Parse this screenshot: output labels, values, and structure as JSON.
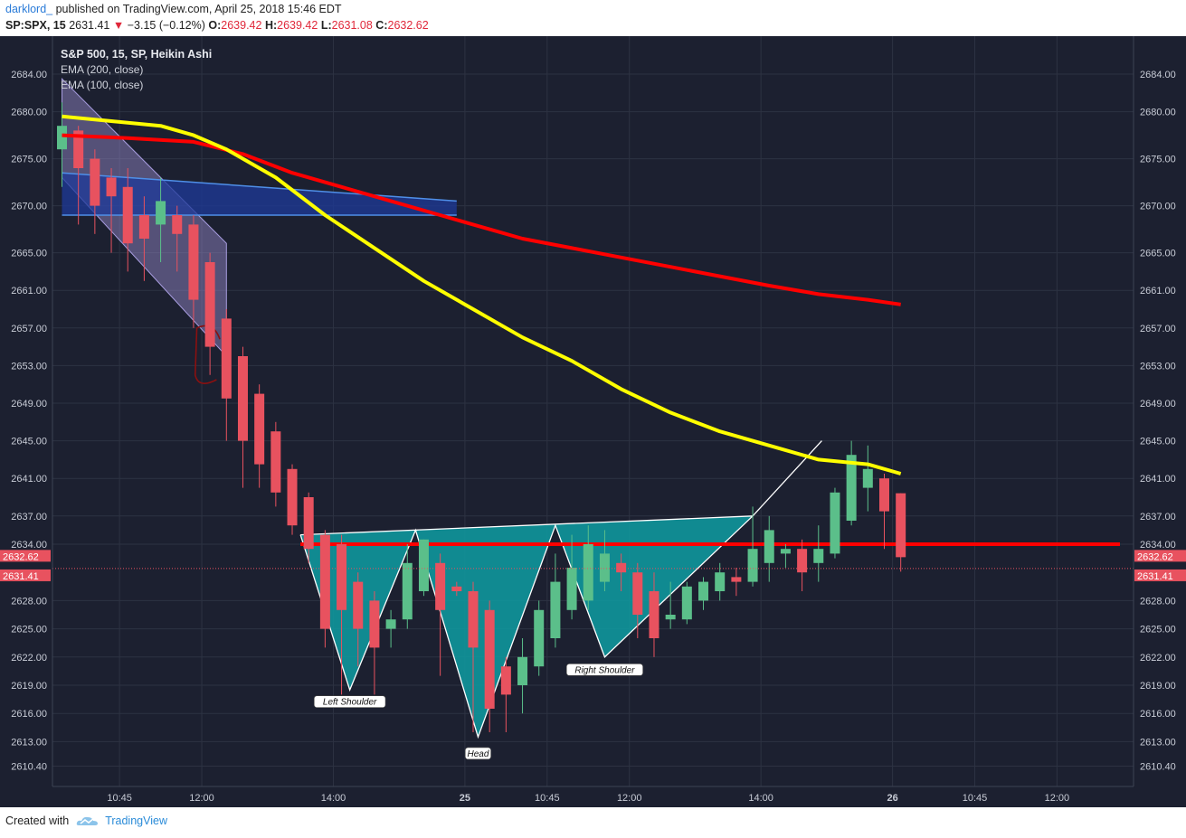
{
  "header": {
    "author": "darklord_",
    "published_text": "published on TradingView.com, April 25, 2018 15:46 EDT",
    "symbol": "SP:SPX, 15",
    "last": "2631.41",
    "change": "−3.15 (−0.12%)",
    "o_label": "O:",
    "o_value": "2639.42",
    "h_label": "H:",
    "h_value": "2639.42",
    "l_label": "L:",
    "l_value": "2631.08",
    "c_label": "C:",
    "c_value": "2632.62"
  },
  "legend": {
    "title": "S&P 500, 15, SP, Heikin Ashi",
    "ema200": "EMA (200, close)",
    "ema100": "EMA (100, close)"
  },
  "footer": {
    "created_with": "Created with",
    "brand": "TradingView"
  },
  "colors": {
    "background": "#1c2030",
    "grid": "#2d3242",
    "up": "#5bbf8a",
    "down": "#e8525f",
    "ema200": "#ff0000",
    "ema100": "#ffff00",
    "pattern_fill": "#0f969c",
    "neckline": "#ff0000",
    "axis_text": "#c8ccd6"
  },
  "chart_data": {
    "type": "candlestick",
    "yticks": [
      2684.0,
      2680.0,
      2675.0,
      2670.0,
      2665.0,
      2661.0,
      2657.0,
      2653.0,
      2649.0,
      2645.0,
      2641.0,
      2637.0,
      2634.0,
      2628.0,
      2625.0,
      2622.0,
      2619.0,
      2616.0,
      2613.0,
      2610.4
    ],
    "ytick_labels": [
      "2684.00",
      "2680.00",
      "2675.00",
      "2670.00",
      "2665.00",
      "2661.00",
      "2657.00",
      "2653.00",
      "2649.00",
      "2645.00",
      "2641.00",
      "2637.00",
      "2634.00",
      "2628.00",
      "2625.00",
      "2622.00",
      "2619.00",
      "2616.00",
      "2613.00",
      "2610.40"
    ],
    "xticks": [
      {
        "index": 3.5,
        "label": "10:45"
      },
      {
        "index": 8.5,
        "label": "12:00"
      },
      {
        "index": 16.5,
        "label": "14:00"
      },
      {
        "index": 24.5,
        "label": "25"
      },
      {
        "index": 29.5,
        "label": "10:45"
      },
      {
        "index": 34.5,
        "label": "12:00"
      },
      {
        "index": 42.5,
        "label": "14:00"
      },
      {
        "index": 50.5,
        "label": "26"
      },
      {
        "index": 55.5,
        "label": "10:45"
      },
      {
        "index": 60.5,
        "label": "12:00"
      }
    ],
    "candles": [
      {
        "o": 2676.0,
        "h": 2681.0,
        "l": 2672.0,
        "c": 2678.5
      },
      {
        "o": 2678.0,
        "h": 2678.5,
        "l": 2668.0,
        "c": 2674.0
      },
      {
        "o": 2675.0,
        "h": 2676.0,
        "l": 2667.0,
        "c": 2670.0
      },
      {
        "o": 2673.0,
        "h": 2674.0,
        "l": 2665.0,
        "c": 2671.0
      },
      {
        "o": 2672.0,
        "h": 2674.0,
        "l": 2663.0,
        "c": 2666.0
      },
      {
        "o": 2669.0,
        "h": 2671.0,
        "l": 2662.0,
        "c": 2666.5
      },
      {
        "o": 2668.0,
        "h": 2673.0,
        "l": 2664.0,
        "c": 2670.5
      },
      {
        "o": 2669.0,
        "h": 2670.0,
        "l": 2663.0,
        "c": 2667.0
      },
      {
        "o": 2668.0,
        "h": 2669.0,
        "l": 2657.0,
        "c": 2660.0
      },
      {
        "o": 2664.0,
        "h": 2665.0,
        "l": 2652.0,
        "c": 2655.0
      },
      {
        "o": 2658.0,
        "h": 2659.0,
        "l": 2645.0,
        "c": 2649.5
      },
      {
        "o": 2654.0,
        "h": 2655.0,
        "l": 2640.0,
        "c": 2645.0
      },
      {
        "o": 2650.0,
        "h": 2651.0,
        "l": 2640.0,
        "c": 2642.5
      },
      {
        "o": 2646.0,
        "h": 2647.0,
        "l": 2638.0,
        "c": 2639.5
      },
      {
        "o": 2642.0,
        "h": 2642.5,
        "l": 2635.0,
        "c": 2636.0
      },
      {
        "o": 2639.0,
        "h": 2639.5,
        "l": 2632.0,
        "c": 2633.5
      },
      {
        "o": 2635.0,
        "h": 2635.5,
        "l": 2623.0,
        "c": 2625.0
      },
      {
        "o": 2634.0,
        "h": 2635.0,
        "l": 2618.0,
        "c": 2627.0
      },
      {
        "o": 2630.0,
        "h": 2631.0,
        "l": 2621.0,
        "c": 2625.0
      },
      {
        "o": 2628.0,
        "h": 2629.0,
        "l": 2618.0,
        "c": 2623.0
      },
      {
        "o": 2625.0,
        "h": 2627.0,
        "l": 2623.0,
        "c": 2626.0
      },
      {
        "o": 2626.0,
        "h": 2634.0,
        "l": 2625.0,
        "c": 2632.0
      },
      {
        "o": 2629.0,
        "h": 2634.5,
        "l": 2628.5,
        "c": 2634.5
      },
      {
        "o": 2632.0,
        "h": 2633.0,
        "l": 2620.0,
        "c": 2627.0
      },
      {
        "o": 2629.5,
        "h": 2630.0,
        "l": 2628.5,
        "c": 2629.0
      },
      {
        "o": 2629.0,
        "h": 2630.0,
        "l": 2614.0,
        "c": 2623.0
      },
      {
        "o": 2627.0,
        "h": 2628.0,
        "l": 2614.0,
        "c": 2616.5
      },
      {
        "o": 2621.0,
        "h": 2622.0,
        "l": 2614.0,
        "c": 2618.0
      },
      {
        "o": 2619.0,
        "h": 2624.0,
        "l": 2616.0,
        "c": 2622.0
      },
      {
        "o": 2621.0,
        "h": 2628.0,
        "l": 2620.0,
        "c": 2627.0
      },
      {
        "o": 2624.0,
        "h": 2633.0,
        "l": 2623.0,
        "c": 2630.0
      },
      {
        "o": 2627.0,
        "h": 2635.0,
        "l": 2626.0,
        "c": 2631.5
      },
      {
        "o": 2628.0,
        "h": 2636.0,
        "l": 2627.0,
        "c": 2634.0
      },
      {
        "o": 2630.0,
        "h": 2635.5,
        "l": 2629.0,
        "c": 2633.0
      },
      {
        "o": 2632.0,
        "h": 2633.0,
        "l": 2629.0,
        "c": 2631.0
      },
      {
        "o": 2631.0,
        "h": 2632.0,
        "l": 2624.0,
        "c": 2626.5
      },
      {
        "o": 2629.0,
        "h": 2631.0,
        "l": 2622.0,
        "c": 2624.0
      },
      {
        "o": 2626.0,
        "h": 2630.0,
        "l": 2625.0,
        "c": 2626.5
      },
      {
        "o": 2626.0,
        "h": 2630.0,
        "l": 2625.5,
        "c": 2629.5
      },
      {
        "o": 2628.0,
        "h": 2630.5,
        "l": 2627.0,
        "c": 2630.0
      },
      {
        "o": 2629.0,
        "h": 2632.0,
        "l": 2628.0,
        "c": 2631.0
      },
      {
        "o": 2630.5,
        "h": 2631.5,
        "l": 2628.5,
        "c": 2630.0
      },
      {
        "o": 2630.0,
        "h": 2638.0,
        "l": 2629.5,
        "c": 2633.5
      },
      {
        "o": 2632.0,
        "h": 2637.0,
        "l": 2630.0,
        "c": 2635.5
      },
      {
        "o": 2633.0,
        "h": 2634.0,
        "l": 2631.5,
        "c": 2633.5
      },
      {
        "o": 2633.5,
        "h": 2634.5,
        "l": 2629.0,
        "c": 2631.0
      },
      {
        "o": 2632.0,
        "h": 2636.0,
        "l": 2630.0,
        "c": 2633.5
      },
      {
        "o": 2633.0,
        "h": 2640.0,
        "l": 2632.5,
        "c": 2639.5
      },
      {
        "o": 2636.5,
        "h": 2645.0,
        "l": 2636.0,
        "c": 2643.5
      },
      {
        "o": 2640.0,
        "h": 2644.5,
        "l": 2637.5,
        "c": 2642.0
      },
      {
        "o": 2641.0,
        "h": 2641.5,
        "l": 2633.5,
        "c": 2637.5
      },
      {
        "o": 2639.42,
        "h": 2639.42,
        "l": 2631.08,
        "c": 2632.62
      }
    ],
    "ema200": [
      [
        0,
        2677.5
      ],
      [
        4,
        2677.2
      ],
      [
        8,
        2676.8
      ],
      [
        11,
        2675.5
      ],
      [
        14,
        2673.5
      ],
      [
        17,
        2672.0
      ],
      [
        20,
        2670.5
      ],
      [
        23,
        2669.0
      ],
      [
        25,
        2668.0
      ],
      [
        28,
        2666.5
      ],
      [
        31,
        2665.5
      ],
      [
        34,
        2664.5
      ],
      [
        37,
        2663.5
      ],
      [
        40,
        2662.5
      ],
      [
        43,
        2661.5
      ],
      [
        46,
        2660.6
      ],
      [
        49,
        2660.0
      ],
      [
        51,
        2659.5
      ]
    ],
    "ema100": [
      [
        0,
        2679.5
      ],
      [
        3,
        2679.0
      ],
      [
        6,
        2678.5
      ],
      [
        8,
        2677.5
      ],
      [
        10,
        2676.0
      ],
      [
        13,
        2673.0
      ],
      [
        16,
        2669.0
      ],
      [
        19,
        2665.5
      ],
      [
        22,
        2662.0
      ],
      [
        25,
        2659.0
      ],
      [
        28,
        2656.0
      ],
      [
        31,
        2653.5
      ],
      [
        34,
        2650.5
      ],
      [
        37,
        2648.0
      ],
      [
        40,
        2646.0
      ],
      [
        43,
        2644.5
      ],
      [
        46,
        2643.0
      ],
      [
        49,
        2642.5
      ],
      [
        51,
        2641.5
      ]
    ],
    "neckline": 2634.0,
    "last_price_line": 2631.41,
    "price_tags": [
      {
        "value": 2632.62,
        "label": "2632.62"
      },
      {
        "value": 2631.41,
        "label": "2631.41"
      }
    ],
    "pattern": {
      "points": [
        [
          14.5,
          2635.0
        ],
        [
          17.5,
          2618.5
        ],
        [
          21.5,
          2635.5
        ],
        [
          25.3,
          2613.5
        ],
        [
          30.0,
          2636.0
        ],
        [
          33.0,
          2622.0
        ],
        [
          42.0,
          2637.0
        ]
      ],
      "breakout": [
        [
          42.0,
          2637.0
        ],
        [
          46.2,
          2645.0
        ]
      ],
      "labels": [
        {
          "at": [
            17.5,
            2617.2
          ],
          "text": "Left Shoulder"
        },
        {
          "at": [
            25.3,
            2611.7
          ],
          "text": "Head"
        },
        {
          "at": [
            33.0,
            2620.6
          ],
          "text": "Right Shoulder"
        }
      ]
    },
    "channel": {
      "top": [
        [
          0,
          2683.5
        ],
        [
          10,
          2666.0
        ]
      ],
      "bottom": [
        [
          0,
          2673.0
        ],
        [
          10,
          2654.0
        ]
      ]
    },
    "box": {
      "x0": 0,
      "x1": 24,
      "top_left": 2673.5,
      "top_right": 2670.5,
      "bottom": 2669.0
    }
  }
}
